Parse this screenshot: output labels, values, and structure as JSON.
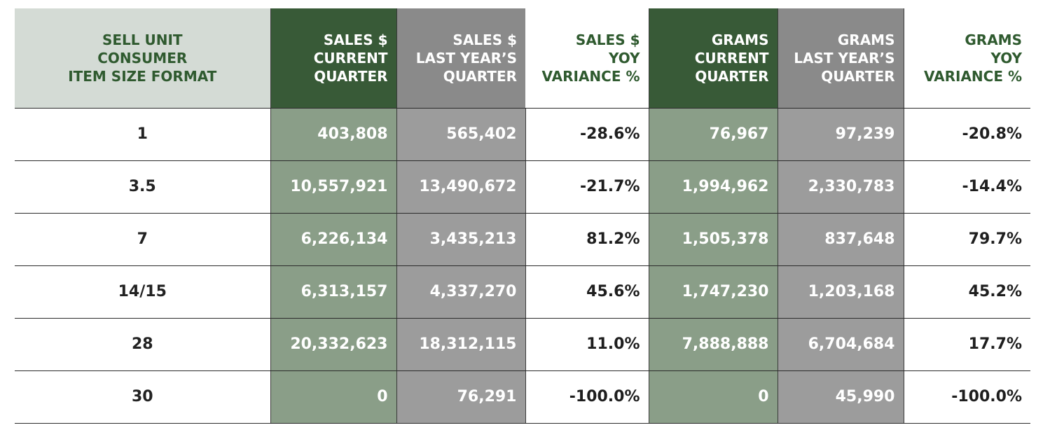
{
  "headers": [
    {
      "lines": [
        "SELL UNIT",
        "CONSUMER",
        "ITEM SIZE FORMAT"
      ]
    },
    {
      "lines": [
        "SALES $",
        "CURRENT",
        "QUARTER"
      ]
    },
    {
      "lines": [
        "SALES $",
        "LAST YEAR’S",
        "QUARTER"
      ]
    },
    {
      "lines": [
        "SALES $",
        "YOY",
        "VARIANCE %"
      ]
    },
    {
      "lines": [
        "GRAMS",
        "CURRENT",
        "QUARTER"
      ]
    },
    {
      "lines": [
        "GRAMS",
        "LAST YEAR’S",
        "QUARTER"
      ]
    },
    {
      "lines": [
        "GRAMS",
        "YOY",
        "VARIANCE %"
      ]
    }
  ],
  "rows": [
    [
      "1",
      "403,808",
      "565,402",
      "-28.6%",
      "76,967",
      "97,239",
      "-20.8%"
    ],
    [
      "3.5",
      "10,557,921",
      "13,490,672",
      "-21.7%",
      "1,994,962",
      "2,330,783",
      "-14.4%"
    ],
    [
      "7",
      "6,226,134",
      "3,435,213",
      "81.2%",
      "1,505,378",
      "837,648",
      "79.7%"
    ],
    [
      "14/15",
      "6,313,157",
      "4,337,270",
      "45.6%",
      "1,747,230",
      "1,203,168",
      "45.2%"
    ],
    [
      "28",
      "20,332,623",
      "18,312,115",
      "11.0%",
      "7,888,888",
      "6,704,684",
      "17.7%"
    ],
    [
      "30",
      "0",
      "76,291",
      "-100.0%",
      "0",
      "45,990",
      "-100.0%"
    ]
  ],
  "colors": {
    "header_format_bg": "#d4dbd5",
    "header_green_bg": "#385a37",
    "header_grey_bg": "#8a8a8a",
    "header_green_text": "#2f5a2f",
    "cell_green_bg": "#8a9e88",
    "cell_grey_bg": "#9c9c9c"
  }
}
